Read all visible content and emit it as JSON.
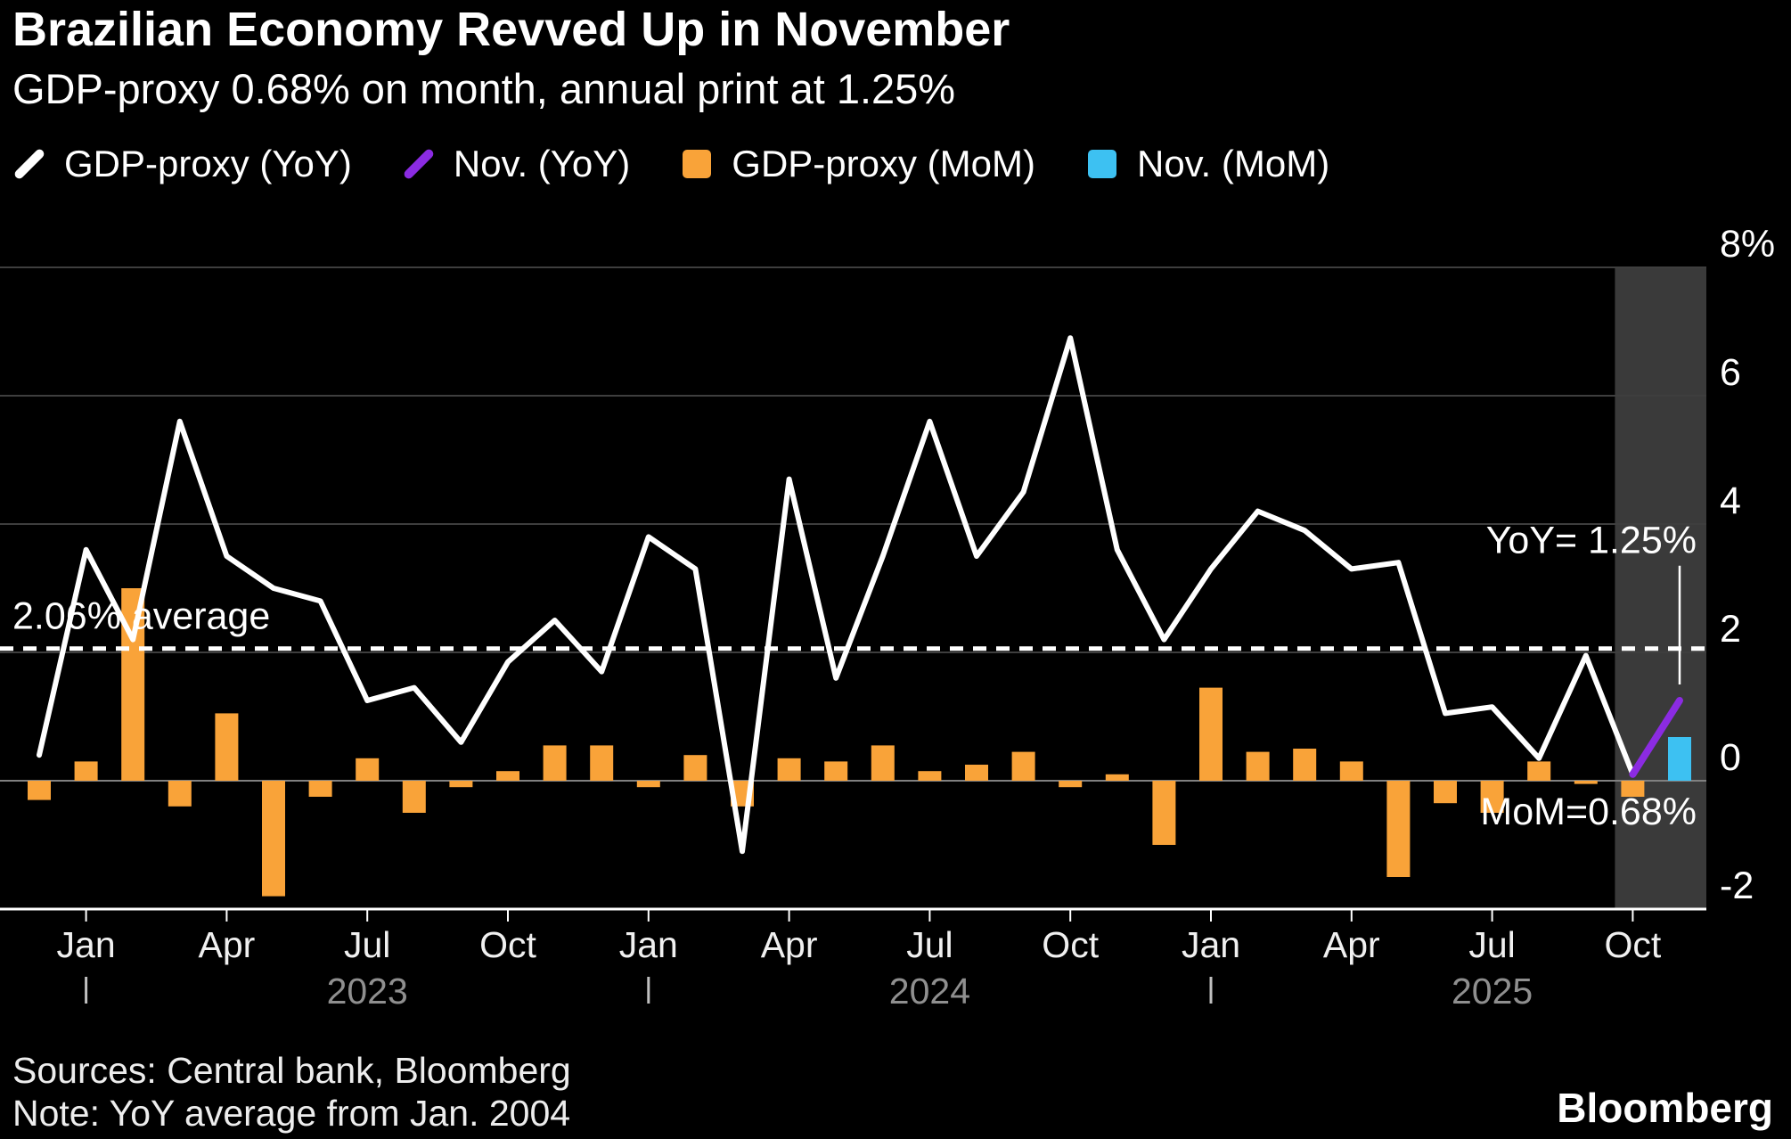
{
  "header": {
    "title": "Brazilian Economy Revved Up in November",
    "subtitle": "GDP-proxy 0.68% on month, annual print at 1.25%"
  },
  "legend": [
    {
      "label": "GDP-proxy (YoY)",
      "swatch": "line",
      "color": "#ffffff"
    },
    {
      "label": "Nov. (YoY)",
      "swatch": "line",
      "color": "#8b2be2"
    },
    {
      "label": "GDP-proxy (MoM)",
      "swatch": "square",
      "color": "#f9a339"
    },
    {
      "label": "Nov. (MoM)",
      "swatch": "square",
      "color": "#3dc1f2"
    }
  ],
  "chart_data": {
    "type": "line+bar",
    "title": "Brazilian Economy Revved Up in November",
    "months": [
      "Dec 2022",
      "Jan 2023",
      "Feb 2023",
      "Mar 2023",
      "Apr 2023",
      "May 2023",
      "Jun 2023",
      "Jul 2023",
      "Aug 2023",
      "Sep 2023",
      "Oct 2023",
      "Nov 2023",
      "Dec 2023",
      "Jan 2024",
      "Feb 2024",
      "Mar 2024",
      "Apr 2024",
      "May 2024",
      "Jun 2024",
      "Jul 2024",
      "Aug 2024",
      "Sep 2024",
      "Oct 2024",
      "Nov 2024",
      "Dec 2024",
      "Jan 2025",
      "Feb 2025",
      "Mar 2025",
      "Apr 2025",
      "May 2025",
      "Jun 2025",
      "Jul 2025",
      "Aug 2025",
      "Sep 2025",
      "Oct 2025",
      "Nov 2025"
    ],
    "yoy_line": {
      "name": "GDP-proxy (YoY)",
      "color": "#ffffff",
      "values": [
        0.4,
        3.6,
        2.2,
        5.6,
        3.5,
        3.0,
        2.8,
        1.25,
        1.45,
        0.6,
        1.85,
        2.5,
        1.7,
        3.8,
        3.3,
        -1.1,
        4.7,
        1.6,
        3.5,
        5.6,
        3.5,
        4.5,
        6.9,
        3.6,
        2.2,
        3.3,
        4.2,
        3.9,
        3.3,
        3.4,
        1.05,
        1.15,
        0.35,
        1.95,
        0.1,
        1.25
      ]
    },
    "nov_yoy": {
      "name": "Nov. (YoY)",
      "color": "#8b2be2",
      "value": 1.25
    },
    "mom_bars": {
      "name": "GDP-proxy (MoM)",
      "color": "#f9a339",
      "values": [
        -0.3,
        0.3,
        3.0,
        -0.4,
        1.05,
        -1.8,
        -0.25,
        0.35,
        -0.5,
        -0.1,
        0.15,
        0.55,
        0.55,
        -0.1,
        0.4,
        -0.4,
        0.35,
        0.3,
        0.55,
        0.15,
        0.25,
        0.45,
        -0.1,
        0.1,
        -1.0,
        1.45,
        0.45,
        0.5,
        0.3,
        -1.5,
        -0.35,
        -0.5,
        0.3,
        -0.05,
        -0.25,
        0.68
      ]
    },
    "nov_mom": {
      "name": "Nov. (MoM)",
      "color": "#3dc1f2",
      "value": 0.68
    },
    "average": {
      "value": 2.06,
      "label": "2.06% average"
    },
    "annotations": {
      "yoy": "YoY= 1.25%",
      "mom": "MoM=0.68%"
    },
    "y_axis": {
      "ticks": [
        8,
        6,
        4,
        2,
        0,
        -2
      ],
      "top_label": "8%",
      "ylim": [
        -2.6,
        8.8
      ],
      "unit": "%"
    },
    "x_axis": {
      "quarter_labels": [
        "Jan",
        "Apr",
        "Jul",
        "Oct"
      ],
      "tick_indices": [
        1,
        4,
        7,
        10,
        13,
        16,
        19,
        22,
        25,
        28,
        31,
        34
      ],
      "year_labels": [
        {
          "label": "2023",
          "index": 7
        },
        {
          "label": "2024",
          "index": 19
        },
        {
          "label": "2025",
          "index": 31
        }
      ],
      "jan_marker_indices": [
        1,
        13,
        25
      ]
    },
    "highlight_band": {
      "start_index": 34,
      "end_index": 35
    }
  },
  "footer": {
    "sources": "Sources: Central bank, Bloomberg",
    "note": "Note: YoY average from Jan. 2004",
    "brand": "Bloomberg"
  }
}
